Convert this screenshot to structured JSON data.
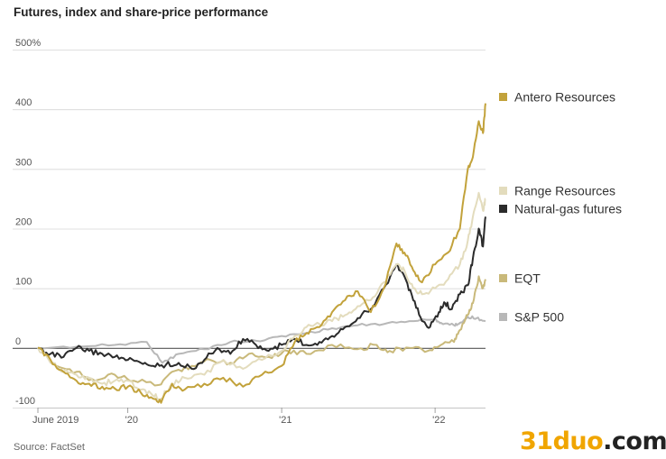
{
  "title": "Futures, index and share-price performance",
  "source": "Source: FactSet",
  "watermark": {
    "part1": "31duo",
    "part2": ".com"
  },
  "chart_data": {
    "type": "line",
    "title": "Futures, index and share-price performance",
    "ylim": [
      -100,
      500
    ],
    "y_ticks": [
      {
        "value": 500,
        "label": "500%"
      },
      {
        "value": 400,
        "label": "400"
      },
      {
        "value": 300,
        "label": "300"
      },
      {
        "value": 200,
        "label": "200"
      },
      {
        "value": 100,
        "label": "100"
      },
      {
        "value": 0,
        "label": "0"
      },
      {
        "value": -100,
        "label": "-100"
      }
    ],
    "x_range": [
      "2019-06-01",
      "2022-05-01"
    ],
    "x_ticks": [
      {
        "date": "2019-06-01",
        "label": "June 2019"
      },
      {
        "date": "2020-01-01",
        "label": "'20"
      },
      {
        "date": "2021-01-01",
        "label": "'21"
      },
      {
        "date": "2022-01-01",
        "label": "'22"
      }
    ],
    "grid": true,
    "legend_position": "right",
    "series": [
      {
        "name": "S&P 500",
        "color": "#b8b8b8",
        "points": [
          [
            "2019-06-01",
            0
          ],
          [
            "2019-09-01",
            2
          ],
          [
            "2019-12-01",
            5
          ],
          [
            "2020-02-15",
            10
          ],
          [
            "2020-03-23",
            -25
          ],
          [
            "2020-05-01",
            -10
          ],
          [
            "2020-07-01",
            -2
          ],
          [
            "2020-09-01",
            10
          ],
          [
            "2020-11-01",
            12
          ],
          [
            "2021-01-01",
            20
          ],
          [
            "2021-03-01",
            25
          ],
          [
            "2021-05-01",
            33
          ],
          [
            "2021-07-01",
            38
          ],
          [
            "2021-09-01",
            40
          ],
          [
            "2021-11-01",
            45
          ],
          [
            "2022-01-01",
            48
          ],
          [
            "2022-01-15",
            42
          ],
          [
            "2022-02-15",
            38
          ],
          [
            "2022-03-01",
            42
          ],
          [
            "2022-03-20",
            52
          ],
          [
            "2022-04-10",
            50
          ],
          [
            "2022-05-01",
            45
          ]
        ]
      },
      {
        "name": "EQT",
        "color": "#c9b97a",
        "points": [
          [
            "2019-06-01",
            0
          ],
          [
            "2019-07-15",
            -30
          ],
          [
            "2019-09-01",
            -40
          ],
          [
            "2019-10-15",
            -55
          ],
          [
            "2019-12-01",
            -45
          ],
          [
            "2020-01-15",
            -55
          ],
          [
            "2020-03-15",
            -62
          ],
          [
            "2020-04-15",
            -40
          ],
          [
            "2020-06-01",
            -30
          ],
          [
            "2020-07-15",
            -20
          ],
          [
            "2020-09-01",
            -25
          ],
          [
            "2020-10-15",
            -10
          ],
          [
            "2020-12-01",
            -15
          ],
          [
            "2021-01-15",
            -5
          ],
          [
            "2021-03-01",
            -10
          ],
          [
            "2021-05-01",
            5
          ],
          [
            "2021-07-01",
            -2
          ],
          [
            "2021-08-15",
            5
          ],
          [
            "2021-09-15",
            -5
          ],
          [
            "2021-11-01",
            0
          ],
          [
            "2021-12-15",
            -5
          ],
          [
            "2022-01-15",
            5
          ],
          [
            "2022-02-15",
            10
          ],
          [
            "2022-03-01",
            30
          ],
          [
            "2022-03-20",
            55
          ],
          [
            "2022-04-01",
            75
          ],
          [
            "2022-04-15",
            120
          ],
          [
            "2022-04-25",
            100
          ],
          [
            "2022-05-01",
            115
          ]
        ]
      },
      {
        "name": "Natural-gas futures",
        "color": "#2b2b2b",
        "points": [
          [
            "2019-06-01",
            0
          ],
          [
            "2019-07-01",
            -10
          ],
          [
            "2019-08-01",
            -15
          ],
          [
            "2019-09-01",
            0
          ],
          [
            "2019-10-01",
            -5
          ],
          [
            "2019-11-01",
            -10
          ],
          [
            "2019-12-01",
            -15
          ],
          [
            "2020-01-01",
            -20
          ],
          [
            "2020-02-01",
            -25
          ],
          [
            "2020-03-01",
            -30
          ],
          [
            "2020-04-01",
            -28
          ],
          [
            "2020-05-01",
            -25
          ],
          [
            "2020-06-01",
            -35
          ],
          [
            "2020-07-01",
            -20
          ],
          [
            "2020-08-01",
            0
          ],
          [
            "2020-09-01",
            -10
          ],
          [
            "2020-10-01",
            15
          ],
          [
            "2020-11-01",
            5
          ],
          [
            "2020-12-01",
            -5
          ],
          [
            "2021-01-01",
            5
          ],
          [
            "2021-02-01",
            15
          ],
          [
            "2021-03-01",
            5
          ],
          [
            "2021-04-01",
            10
          ],
          [
            "2021-05-01",
            20
          ],
          [
            "2021-06-01",
            35
          ],
          [
            "2021-07-01",
            50
          ],
          [
            "2021-08-01",
            65
          ],
          [
            "2021-09-01",
            100
          ],
          [
            "2021-10-01",
            140
          ],
          [
            "2021-10-20",
            120
          ],
          [
            "2021-11-10",
            80
          ],
          [
            "2021-12-01",
            45
          ],
          [
            "2021-12-20",
            35
          ],
          [
            "2022-01-10",
            60
          ],
          [
            "2022-01-25",
            75
          ],
          [
            "2022-02-10",
            65
          ],
          [
            "2022-03-01",
            90
          ],
          [
            "2022-03-20",
            105
          ],
          [
            "2022-04-01",
            150
          ],
          [
            "2022-04-15",
            200
          ],
          [
            "2022-04-25",
            170
          ],
          [
            "2022-05-01",
            220
          ]
        ]
      },
      {
        "name": "Range Resources",
        "color": "#e3dcbd",
        "points": [
          [
            "2019-06-01",
            0
          ],
          [
            "2019-07-01",
            -25
          ],
          [
            "2019-08-01",
            -40
          ],
          [
            "2019-09-01",
            -45
          ],
          [
            "2019-10-01",
            -50
          ],
          [
            "2019-11-01",
            -60
          ],
          [
            "2019-12-01",
            -55
          ],
          [
            "2020-01-01",
            -55
          ],
          [
            "2020-02-01",
            -70
          ],
          [
            "2020-03-01",
            -80
          ],
          [
            "2020-03-20",
            -85
          ],
          [
            "2020-04-15",
            -60
          ],
          [
            "2020-05-15",
            -50
          ],
          [
            "2020-07-01",
            -45
          ],
          [
            "2020-08-15",
            -20
          ],
          [
            "2020-10-01",
            -35
          ],
          [
            "2020-11-15",
            -20
          ],
          [
            "2021-01-01",
            -5
          ],
          [
            "2021-02-01",
            20
          ],
          [
            "2021-03-01",
            35
          ],
          [
            "2021-04-01",
            40
          ],
          [
            "2021-05-01",
            45
          ],
          [
            "2021-06-01",
            55
          ],
          [
            "2021-07-01",
            70
          ],
          [
            "2021-08-01",
            80
          ],
          [
            "2021-09-01",
            110
          ],
          [
            "2021-10-01",
            140
          ],
          [
            "2021-10-20",
            130
          ],
          [
            "2021-11-10",
            100
          ],
          [
            "2021-12-01",
            90
          ],
          [
            "2022-01-01",
            100
          ],
          [
            "2022-02-01",
            115
          ],
          [
            "2022-03-01",
            140
          ],
          [
            "2022-03-20",
            180
          ],
          [
            "2022-04-01",
            220
          ],
          [
            "2022-04-15",
            260
          ],
          [
            "2022-04-25",
            230
          ],
          [
            "2022-05-01",
            250
          ]
        ]
      },
      {
        "name": "Antero Resources",
        "color": "#c2a23b",
        "points": [
          [
            "2019-06-01",
            0
          ],
          [
            "2019-07-01",
            -20
          ],
          [
            "2019-08-01",
            -40
          ],
          [
            "2019-09-01",
            -55
          ],
          [
            "2019-10-01",
            -60
          ],
          [
            "2019-11-01",
            -65
          ],
          [
            "2019-12-01",
            -68
          ],
          [
            "2020-01-01",
            -65
          ],
          [
            "2020-02-01",
            -75
          ],
          [
            "2020-03-01",
            -85
          ],
          [
            "2020-03-20",
            -92
          ],
          [
            "2020-04-15",
            -60
          ],
          [
            "2020-05-15",
            -70
          ],
          [
            "2020-07-01",
            -60
          ],
          [
            "2020-08-15",
            -50
          ],
          [
            "2020-10-01",
            -65
          ],
          [
            "2020-11-15",
            -45
          ],
          [
            "2021-01-01",
            -30
          ],
          [
            "2021-02-01",
            10
          ],
          [
            "2021-03-01",
            25
          ],
          [
            "2021-04-01",
            35
          ],
          [
            "2021-05-01",
            60
          ],
          [
            "2021-06-01",
            80
          ],
          [
            "2021-07-01",
            95
          ],
          [
            "2021-08-01",
            60
          ],
          [
            "2021-09-01",
            100
          ],
          [
            "2021-10-01",
            175
          ],
          [
            "2021-10-20",
            160
          ],
          [
            "2021-11-10",
            130
          ],
          [
            "2021-12-01",
            110
          ],
          [
            "2022-01-01",
            140
          ],
          [
            "2022-02-01",
            160
          ],
          [
            "2022-03-01",
            200
          ],
          [
            "2022-03-20",
            300
          ],
          [
            "2022-04-01",
            320
          ],
          [
            "2022-04-15",
            380
          ],
          [
            "2022-04-25",
            360
          ],
          [
            "2022-05-01",
            410
          ]
        ]
      }
    ],
    "legend": [
      {
        "name": "Antero Resources",
        "color": "#c2a23b"
      },
      {
        "name": "Range Resources",
        "color": "#e3dcbd"
      },
      {
        "name": "Natural-gas futures",
        "color": "#2b2b2b"
      },
      {
        "name": "EQT",
        "color": "#c9b97a"
      },
      {
        "name": "S&P 500",
        "color": "#b8b8b8"
      }
    ]
  }
}
